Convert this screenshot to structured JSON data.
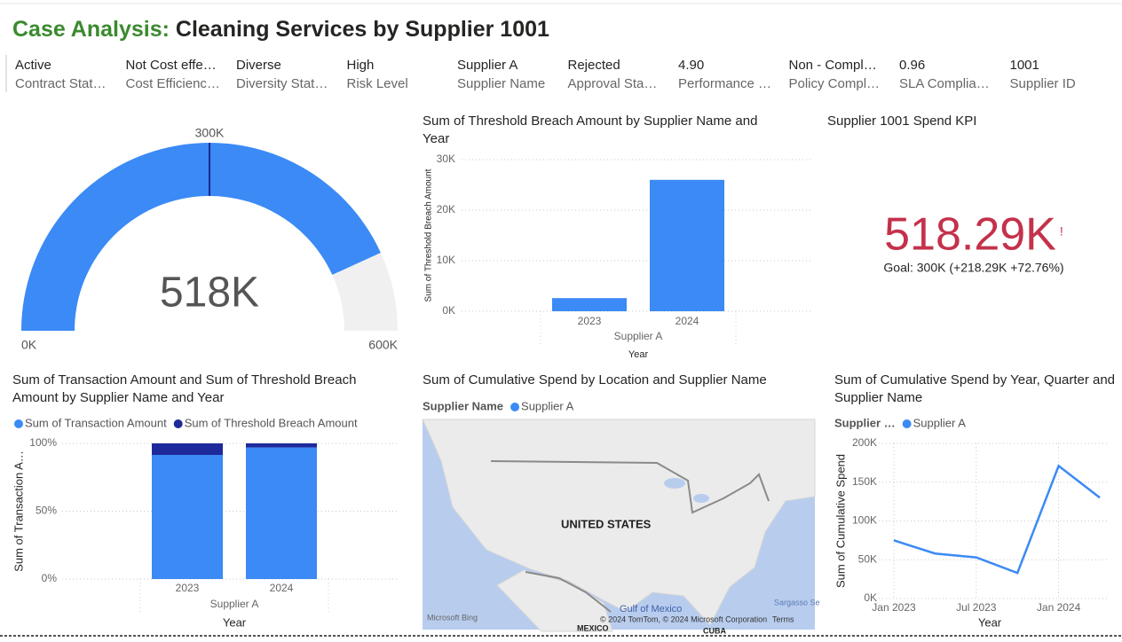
{
  "header": {
    "title_prefix": "Case Analysis:",
    "title": "Cleaning Services by Supplier 1001"
  },
  "cards": [
    {
      "value": "Active",
      "label": "Contract Stat…"
    },
    {
      "value": "Not Cost effe…",
      "label": "Cost Efficienc…"
    },
    {
      "value": "Diverse",
      "label": "Diversity Stat…"
    },
    {
      "value": "High",
      "label": "Risk Level"
    },
    {
      "value": "Supplier A",
      "label": "Supplier Name"
    },
    {
      "value": "Rejected",
      "label": "Approval Sta…"
    },
    {
      "value": "4.90",
      "label": "Performance …"
    },
    {
      "value": "Non - Compl…",
      "label": "Policy Compl…"
    },
    {
      "value": "0.96",
      "label": "SLA Complia…"
    },
    {
      "value": "1001",
      "label": "Supplier ID"
    }
  ],
  "chart_data": [
    {
      "type": "gauge",
      "values": [
        518290
      ],
      "value_labels": [
        "518K"
      ],
      "ylim": [
        0,
        600000
      ],
      "yticks": [
        {
          "value": 0,
          "label": "0K"
        },
        {
          "value": 600000,
          "label": "600K"
        }
      ],
      "target": {
        "value": 300000,
        "label": "300K"
      },
      "color": "#3b8af5",
      "track_color": "#f0f0f0",
      "target_color": "#1a2b8c"
    },
    {
      "type": "bar",
      "title": "Sum of Threshold Breach Amount by Supplier Name and Year",
      "y_label": "Sum of Threshold Breach Amount",
      "group_label": "Supplier A",
      "x_label": "Year",
      "categories": [
        "2023",
        "2024"
      ],
      "values": [
        2600,
        26000
      ],
      "color": "#3b8af5",
      "ylim": [
        0,
        30000
      ],
      "yticks": [
        {
          "value": 0,
          "label": "0K"
        },
        {
          "value": 10000,
          "label": "10K"
        },
        {
          "value": 20000,
          "label": "20K"
        },
        {
          "value": 30000,
          "label": "30K"
        }
      ],
      "grid": true
    },
    {
      "type": "kpi",
      "title": "Supplier 1001 Spend KPI",
      "values": [
        518290
      ],
      "value_labels": [
        "518.29K"
      ],
      "indicator": "!",
      "goal_label": "Goal: 300K (+218.29K +72.76%)",
      "color": "#c4314b"
    },
    {
      "type": "stacked_bar",
      "title": "Sum of Transaction Amount and Sum of Threshold Breach Amount by Supplier Name and Year",
      "y_label": "Sum of Transaction A…",
      "group_label": "Supplier A",
      "x_label": "Year",
      "categories": [
        "2023",
        "2024"
      ],
      "series": [
        {
          "name": "Sum of Transaction Amount",
          "color": "#3b8af5",
          "values": [
            91.5,
            97
          ]
        },
        {
          "name": "Sum of Threshold Breach Amount",
          "color": "#1e2a9b",
          "values": [
            8.5,
            3
          ]
        }
      ],
      "ylim": [
        0,
        100
      ],
      "yticks": [
        {
          "value": 0,
          "label": "0%"
        },
        {
          "value": 50,
          "label": "50%"
        },
        {
          "value": 100,
          "label": "100%"
        }
      ],
      "grid": true
    },
    {
      "type": "map",
      "title": "Sum of Cumulative Spend by Location and Supplier Name",
      "legend_title": "Supplier Name",
      "series": [
        {
          "name": "Supplier A",
          "color": "#3b8af5"
        }
      ],
      "labels": [
        "UNITED STATES",
        "Gulf of Mexico",
        "MEXICO",
        "CUBA",
        "Sargasso Se"
      ],
      "logo": "Microsoft Bing",
      "attribution": "© 2024 TomTom, © 2024 Microsoft Corporation",
      "terms": "Terms"
    },
    {
      "type": "line",
      "title": "Sum of Cumulative Spend by Year, Quarter and Supplier Name",
      "legend_title": "Supplier …",
      "y_label": "Sum of Cumulative Spend",
      "x_label": "Year",
      "categories": [
        "Jan 2023",
        null,
        "Jul 2023",
        null,
        "Jan 2024",
        null
      ],
      "series": [
        {
          "name": "Supplier A",
          "color": "#3b8af5",
          "values": [
            75000,
            58000,
            53000,
            33000,
            171000,
            130000
          ]
        }
      ],
      "ylim": [
        0,
        200000
      ],
      "yticks": [
        {
          "value": 0,
          "label": "0K"
        },
        {
          "value": 50000,
          "label": "50K"
        },
        {
          "value": 100000,
          "label": "100K"
        },
        {
          "value": 150000,
          "label": "150K"
        },
        {
          "value": 200000,
          "label": "200K"
        }
      ],
      "grid": true
    }
  ]
}
